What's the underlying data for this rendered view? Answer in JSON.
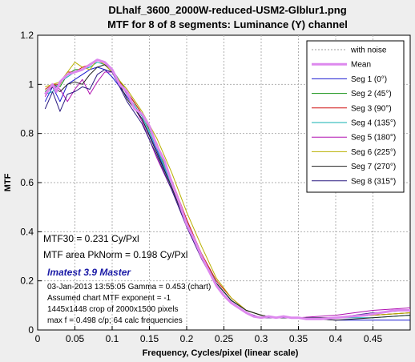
{
  "chart_data": {
    "type": "line",
    "title": "DLhalf_3600_2000W-reduced-USM2-Glblur1.png",
    "subtitle": "MTF for 8 of 8 segments:  Luminance (Y) channel",
    "xlabel": "Frequency, Cycles/pixel (linear scale)",
    "ylabel": "MTF",
    "xlim": [
      0,
      0.5
    ],
    "ylim": [
      0,
      1.2
    ],
    "x_ticks": [
      "0",
      "0.05",
      "0.1",
      "0.15",
      "0.2",
      "0.25",
      "0.3",
      "0.35",
      "0.4",
      "0.45"
    ],
    "y_ticks": [
      "0",
      "0.2",
      "0.4",
      "0.6",
      "0.8",
      "1",
      "1.2"
    ],
    "grid": true,
    "legend_position": "top-right",
    "legend": [
      {
        "label": "with noise",
        "color": "#999999",
        "style": "dotted"
      },
      {
        "label": "Mean",
        "color": "#dd88ee",
        "style": "thick"
      },
      {
        "label": "Seg 1 (0°)",
        "color": "#1a1ad0",
        "style": "solid"
      },
      {
        "label": "Seg 2 (45°)",
        "color": "#109010",
        "style": "solid"
      },
      {
        "label": "Seg 3 (90°)",
        "color": "#d01010",
        "style": "solid"
      },
      {
        "label": "Seg 4 (135°)",
        "color": "#10b0b0",
        "style": "solid"
      },
      {
        "label": "Seg 5 (180°)",
        "color": "#b010b0",
        "style": "solid"
      },
      {
        "label": "Seg 6 (225°)",
        "color": "#b8b000",
        "style": "solid"
      },
      {
        "label": "Seg 7 (270°)",
        "color": "#202020",
        "style": "solid"
      },
      {
        "label": "Seg 8 (315°)",
        "color": "#2a1a80",
        "style": "solid"
      }
    ],
    "series": [
      {
        "name": "Mean",
        "x": [
          0.01,
          0.015,
          0.02,
          0.025,
          0.03,
          0.04,
          0.05,
          0.06,
          0.07,
          0.075,
          0.08,
          0.09,
          0.1,
          0.11,
          0.12,
          0.13,
          0.14,
          0.15,
          0.16,
          0.17,
          0.18,
          0.19,
          0.2,
          0.21,
          0.22,
          0.23,
          0.24,
          0.25,
          0.26,
          0.27,
          0.28,
          0.29,
          0.3,
          0.31,
          0.32,
          0.33,
          0.34,
          0.35,
          0.36,
          0.38,
          0.4,
          0.42,
          0.44,
          0.46,
          0.48,
          0.5
        ],
        "y": [
          0.96,
          0.98,
          1.0,
          0.97,
          1.01,
          1.04,
          1.05,
          1.06,
          1.08,
          1.09,
          1.1,
          1.09,
          1.06,
          1.0,
          0.97,
          0.9,
          0.88,
          0.83,
          0.75,
          0.69,
          0.6,
          0.52,
          0.43,
          0.37,
          0.3,
          0.24,
          0.18,
          0.14,
          0.11,
          0.09,
          0.07,
          0.055,
          0.05,
          0.055,
          0.05,
          0.055,
          0.05,
          0.05,
          0.045,
          0.045,
          0.05,
          0.055,
          0.06,
          0.07,
          0.08,
          0.08
        ]
      },
      {
        "name": "Seg 1 (0°)",
        "x": [
          0.01,
          0.02,
          0.03,
          0.04,
          0.05,
          0.06,
          0.07,
          0.08,
          0.09,
          0.1,
          0.12,
          0.14,
          0.16,
          0.18,
          0.2,
          0.22,
          0.24,
          0.26,
          0.28,
          0.3,
          0.32,
          0.35,
          0.4,
          0.45,
          0.5
        ],
        "y": [
          0.93,
          0.99,
          0.93,
          1.0,
          1.02,
          1.04,
          1.06,
          1.07,
          1.06,
          1.03,
          0.95,
          0.86,
          0.73,
          0.58,
          0.43,
          0.3,
          0.19,
          0.12,
          0.08,
          0.06,
          0.05,
          0.05,
          0.04,
          0.04,
          0.04
        ]
      },
      {
        "name": "Seg 2 (45°)",
        "x": [
          0.01,
          0.02,
          0.03,
          0.04,
          0.05,
          0.06,
          0.07,
          0.08,
          0.09,
          0.1,
          0.12,
          0.14,
          0.16,
          0.18,
          0.2,
          0.22,
          0.24,
          0.26,
          0.28,
          0.3,
          0.32,
          0.35,
          0.4,
          0.45,
          0.5
        ],
        "y": [
          0.97,
          1.0,
          0.99,
          1.04,
          1.06,
          1.06,
          1.08,
          1.1,
          1.09,
          1.06,
          0.97,
          0.88,
          0.75,
          0.6,
          0.44,
          0.31,
          0.19,
          0.12,
          0.08,
          0.06,
          0.05,
          0.05,
          0.05,
          0.06,
          0.07
        ]
      },
      {
        "name": "Seg 3 (90°)",
        "x": [
          0.01,
          0.02,
          0.03,
          0.04,
          0.05,
          0.06,
          0.07,
          0.08,
          0.09,
          0.1,
          0.12,
          0.14,
          0.16,
          0.18,
          0.2,
          0.22,
          0.24,
          0.26,
          0.28,
          0.3,
          0.32,
          0.35,
          0.4,
          0.45,
          0.5
        ],
        "y": [
          0.98,
          1.0,
          1.0,
          1.05,
          1.05,
          1.07,
          1.08,
          1.1,
          1.08,
          1.05,
          0.97,
          0.88,
          0.76,
          0.61,
          0.45,
          0.31,
          0.2,
          0.13,
          0.08,
          0.06,
          0.05,
          0.05,
          0.05,
          0.06,
          0.07
        ]
      },
      {
        "name": "Seg 4 (135°)",
        "x": [
          0.01,
          0.02,
          0.03,
          0.04,
          0.05,
          0.06,
          0.07,
          0.08,
          0.09,
          0.1,
          0.12,
          0.14,
          0.16,
          0.18,
          0.2,
          0.22,
          0.24,
          0.26,
          0.28,
          0.3,
          0.32,
          0.35,
          0.4,
          0.45,
          0.5
        ],
        "y": [
          0.96,
          0.97,
          1.01,
          1.03,
          1.05,
          1.06,
          1.07,
          1.09,
          1.08,
          1.05,
          0.96,
          0.87,
          0.74,
          0.59,
          0.44,
          0.3,
          0.19,
          0.12,
          0.08,
          0.06,
          0.05,
          0.05,
          0.05,
          0.05,
          0.06
        ]
      },
      {
        "name": "Seg 5 (180°)",
        "x": [
          0.01,
          0.02,
          0.03,
          0.04,
          0.05,
          0.06,
          0.07,
          0.08,
          0.09,
          0.1,
          0.12,
          0.14,
          0.16,
          0.18,
          0.2,
          0.22,
          0.24,
          0.26,
          0.28,
          0.3,
          0.32,
          0.35,
          0.4,
          0.45,
          0.5
        ],
        "y": [
          0.95,
          1.0,
          0.98,
          0.93,
          0.98,
          1.02,
          0.96,
          1.01,
          1.05,
          1.05,
          0.96,
          0.85,
          0.7,
          0.57,
          0.42,
          0.29,
          0.18,
          0.11,
          0.07,
          0.05,
          0.05,
          0.05,
          0.06,
          0.08,
          0.09
        ]
      },
      {
        "name": "Seg 6 (225°)",
        "x": [
          0.01,
          0.02,
          0.03,
          0.04,
          0.05,
          0.06,
          0.07,
          0.08,
          0.09,
          0.1,
          0.12,
          0.14,
          0.16,
          0.18,
          0.2,
          0.22,
          0.24,
          0.26,
          0.28,
          0.3,
          0.32,
          0.35,
          0.4,
          0.45,
          0.5
        ],
        "y": [
          0.99,
          1.0,
          1.01,
          1.05,
          1.09,
          1.07,
          1.06,
          1.1,
          1.08,
          1.05,
          0.98,
          0.89,
          0.78,
          0.64,
          0.48,
          0.34,
          0.21,
          0.13,
          0.08,
          0.06,
          0.05,
          0.05,
          0.05,
          0.06,
          0.07
        ]
      },
      {
        "name": "Seg 7 (270°)",
        "x": [
          0.01,
          0.02,
          0.03,
          0.04,
          0.05,
          0.06,
          0.07,
          0.08,
          0.09,
          0.1,
          0.12,
          0.14,
          0.16,
          0.18,
          0.2,
          0.22,
          0.24,
          0.26,
          0.28,
          0.3,
          0.32,
          0.35,
          0.4,
          0.45,
          0.5
        ],
        "y": [
          0.96,
          0.99,
          0.97,
          1.0,
          1.01,
          1.0,
          1.04,
          1.07,
          1.08,
          1.06,
          0.94,
          0.86,
          0.72,
          0.58,
          0.43,
          0.3,
          0.19,
          0.12,
          0.08,
          0.06,
          0.05,
          0.05,
          0.04,
          0.05,
          0.06
        ]
      },
      {
        "name": "Seg 8 (315°)",
        "x": [
          0.01,
          0.02,
          0.03,
          0.04,
          0.05,
          0.06,
          0.07,
          0.08,
          0.09,
          0.1,
          0.12,
          0.14,
          0.16,
          0.18,
          0.2,
          0.22,
          0.24,
          0.26,
          0.28,
          0.3,
          0.32,
          0.35,
          0.4,
          0.45,
          0.5
        ],
        "y": [
          0.9,
          0.97,
          0.89,
          0.96,
          0.97,
          0.99,
          0.98,
          1.04,
          1.06,
          1.05,
          0.93,
          0.84,
          0.71,
          0.57,
          0.42,
          0.29,
          0.18,
          0.11,
          0.07,
          0.05,
          0.05,
          0.05,
          0.05,
          0.07,
          0.08
        ]
      }
    ]
  },
  "annotations": {
    "mtf30": "MTF30 = 0.231 Cy/Pxl",
    "mtf_area": "MTF area PkNorm = 0.198 Cy/Pxl",
    "brand": "Imatest 3.9 Master",
    "date_line": "03-Jan-2013 13:55:05    Gamma = 0.453 (chart)",
    "exponent": "Assumed chart MTF exponent = -1",
    "crop": "1445x1448 crop of 2000x1500 pixels",
    "maxf": "max f = 0.498 c/p;  64 calc frequencies"
  }
}
